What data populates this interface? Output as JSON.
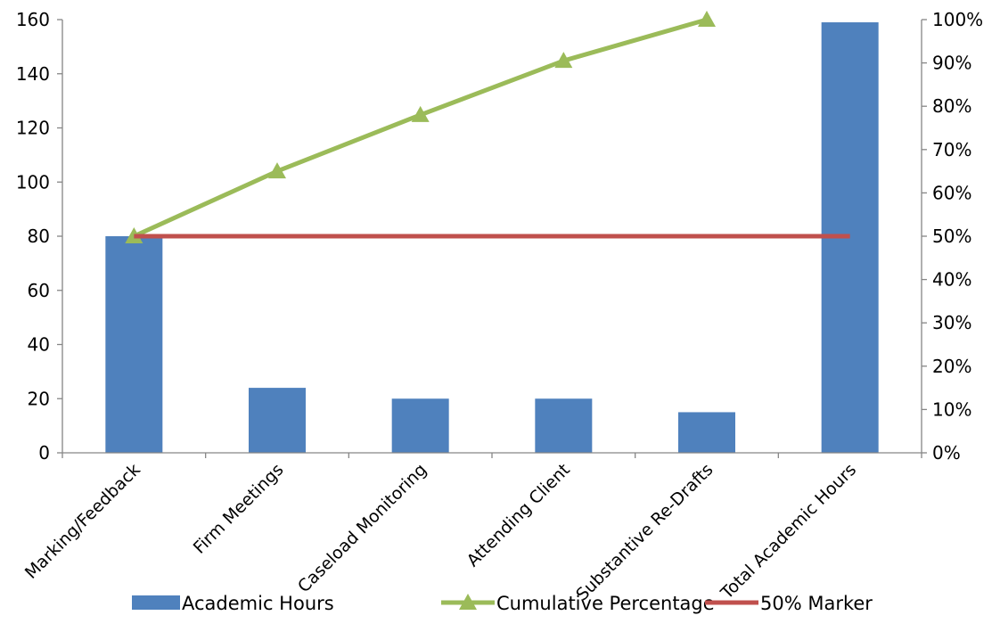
{
  "chart_data": {
    "type": "bar",
    "categories": [
      "Marking/Feedback",
      "Firm Meetings",
      "Caseload Monitoring",
      "Attending Client",
      "Substantive Re-Drafts",
      "Total Academic Hours"
    ],
    "series": [
      {
        "name": "Academic Hours",
        "type": "bar",
        "axis": "left",
        "color": "#4F81BD",
        "values": [
          80,
          24,
          20,
          20,
          15,
          159
        ]
      },
      {
        "name": "Cumulative Percentage",
        "type": "line",
        "axis": "right",
        "color": "#9BBB59",
        "marker": "triangle",
        "values": [
          0.5,
          0.65,
          0.78,
          0.905,
          1.0,
          null
        ]
      },
      {
        "name": "50% Marker",
        "type": "line",
        "axis": "right",
        "color": "#C0504D",
        "values": [
          0.5,
          0.5,
          0.5,
          0.5,
          0.5,
          0.5
        ]
      }
    ],
    "y_left": {
      "min": 0,
      "max": 160,
      "step": 20,
      "tick_labels": [
        "0",
        "20",
        "40",
        "60",
        "80",
        "100",
        "120",
        "140",
        "160"
      ]
    },
    "y_right": {
      "min": 0,
      "max": 1,
      "step": 0.1,
      "tick_labels": [
        "0%",
        "10%",
        "20%",
        "30%",
        "40%",
        "50%",
        "60%",
        "70%",
        "80%",
        "90%",
        "100%"
      ]
    },
    "grid": false,
    "legend": {
      "position": "bottom"
    },
    "title": "",
    "xlabel": "",
    "ylabel": ""
  }
}
